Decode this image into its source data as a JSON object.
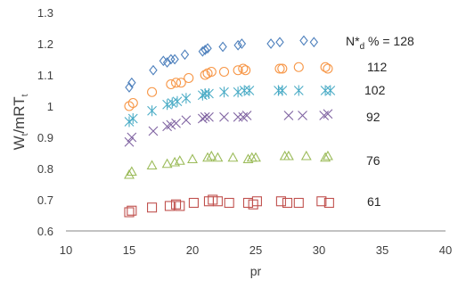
{
  "chart_data": {
    "type": "scatter",
    "title": "",
    "xlabel": "pr",
    "ylabel": "W",
    "ylabel_sub1": "t",
    "ylabel_mid": "/mRT",
    "ylabel_sub2": "t",
    "xlim": [
      10,
      40
    ],
    "ylim": [
      0.6,
      1.3
    ],
    "x_ticks": [
      "10",
      "15",
      "20",
      "25",
      "30",
      "35",
      "40"
    ],
    "y_ticks": [
      "0.6",
      "0.7",
      "0.8",
      "0.9",
      "1",
      "1.1",
      "1.2",
      "1.3"
    ],
    "x_tick_values": [
      10,
      15,
      20,
      25,
      30,
      35,
      40
    ],
    "y_tick_values": [
      0.6,
      0.7,
      0.8,
      0.9,
      1.0,
      1.1,
      1.2,
      1.3
    ],
    "grid": false,
    "legend_prefix": "N*",
    "legend_sub": "d",
    "legend_suffix": " % = 128",
    "series": [
      {
        "name": "128",
        "marker": "diamond",
        "color": "#4f81bd",
        "x": [
          15.0,
          15.2,
          16.9,
          17.7,
          18.0,
          18.3,
          18.6,
          19.4,
          20.8,
          21.0,
          21.2,
          22.4,
          23.6,
          23.9,
          26.2,
          26.9,
          28.8,
          29.6
        ],
        "y": [
          1.06,
          1.075,
          1.115,
          1.145,
          1.14,
          1.15,
          1.15,
          1.165,
          1.175,
          1.18,
          1.185,
          1.19,
          1.195,
          1.2,
          1.2,
          1.205,
          1.21,
          1.205
        ]
      },
      {
        "name": "112",
        "marker": "circle",
        "color": "#f79646",
        "x": [
          15.0,
          15.3,
          16.8,
          18.3,
          18.7,
          19.1,
          19.7,
          21.0,
          21.2,
          21.5,
          22.5,
          23.6,
          24.0,
          24.2,
          26.9,
          27.1,
          28.4,
          30.5,
          30.7
        ],
        "y": [
          1.0,
          1.01,
          1.045,
          1.07,
          1.075,
          1.075,
          1.09,
          1.1,
          1.105,
          1.11,
          1.11,
          1.115,
          1.12,
          1.115,
          1.12,
          1.12,
          1.125,
          1.125,
          1.12
        ]
      },
      {
        "name": "102",
        "marker": "asterisk",
        "color": "#4bacc6",
        "x": [
          15.0,
          15.3,
          16.8,
          18.0,
          18.4,
          18.8,
          19.5,
          20.8,
          21.0,
          21.3,
          22.5,
          23.6,
          24.1,
          24.5,
          26.8,
          27.1,
          28.4,
          30.5,
          30.9
        ],
        "y": [
          0.95,
          0.96,
          0.985,
          1.005,
          1.01,
          1.015,
          1.025,
          1.035,
          1.04,
          1.04,
          1.045,
          1.045,
          1.05,
          1.05,
          1.05,
          1.05,
          1.05,
          1.05,
          1.05
        ]
      },
      {
        "name": "92",
        "marker": "x",
        "color": "#8064a2",
        "x": [
          15.0,
          15.2,
          16.9,
          18.0,
          18.3,
          18.7,
          19.5,
          20.8,
          21.0,
          21.3,
          22.5,
          23.6,
          24.0,
          24.3,
          27.6,
          28.7,
          30.4,
          30.7
        ],
        "y": [
          0.885,
          0.9,
          0.92,
          0.935,
          0.94,
          0.945,
          0.955,
          0.96,
          0.965,
          0.965,
          0.965,
          0.965,
          0.965,
          0.97,
          0.97,
          0.97,
          0.97,
          0.975
        ]
      },
      {
        "name": "76",
        "marker": "triangle",
        "color": "#9bbb59",
        "x": [
          15.0,
          15.2,
          16.8,
          18.0,
          18.6,
          19.0,
          20.0,
          21.2,
          21.5,
          22.0,
          23.2,
          24.4,
          24.7,
          25.0,
          27.3,
          27.6,
          29.0,
          30.5,
          30.7
        ],
        "y": [
          0.78,
          0.79,
          0.81,
          0.815,
          0.82,
          0.825,
          0.83,
          0.835,
          0.84,
          0.835,
          0.835,
          0.83,
          0.835,
          0.835,
          0.84,
          0.84,
          0.84,
          0.835,
          0.84
        ]
      },
      {
        "name": "61",
        "marker": "square",
        "color": "#c0504d",
        "x": [
          15.0,
          15.2,
          16.8,
          18.2,
          18.7,
          19.0,
          20.1,
          21.3,
          21.6,
          22.0,
          22.9,
          24.4,
          24.8,
          25.1,
          27.0,
          27.5,
          28.4,
          30.2,
          30.8
        ],
        "y": [
          0.66,
          0.665,
          0.675,
          0.68,
          0.685,
          0.68,
          0.69,
          0.695,
          0.7,
          0.695,
          0.69,
          0.69,
          0.685,
          0.695,
          0.695,
          0.69,
          0.69,
          0.695,
          0.69
        ]
      }
    ]
  }
}
